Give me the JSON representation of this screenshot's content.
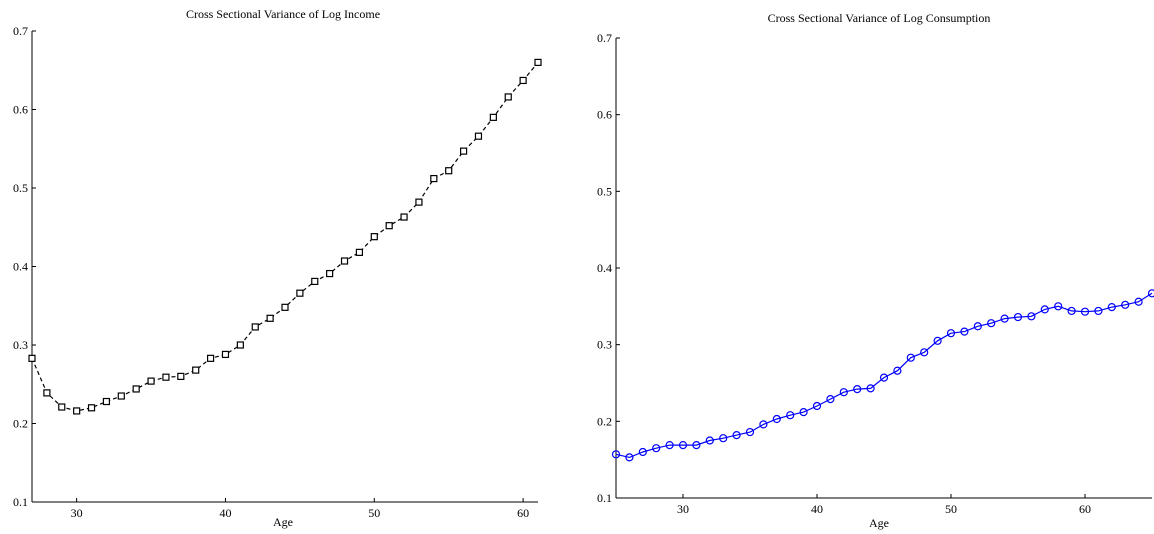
{
  "chart_data": [
    {
      "type": "line",
      "title": "Cross Sectional Variance of Log Income",
      "xlabel": "Age",
      "ylabel": "",
      "xlim": [
        27,
        61
      ],
      "ylim": [
        0.1,
        0.7
      ],
      "xticks": [
        30,
        40,
        50,
        60
      ],
      "yticks": [
        0.1,
        0.2,
        0.3,
        0.4,
        0.5,
        0.6,
        0.7
      ],
      "grid": false,
      "series": [
        {
          "color": "#000000",
          "line_style": "dashed",
          "marker": "square",
          "x": [
            27,
            28,
            29,
            30,
            31,
            32,
            33,
            34,
            35,
            36,
            37,
            38,
            39,
            40,
            41,
            42,
            43,
            44,
            45,
            46,
            47,
            48,
            49,
            50,
            51,
            52,
            53,
            54,
            55,
            56,
            57,
            58,
            59,
            60,
            61
          ],
          "y": [
            0.283,
            0.239,
            0.221,
            0.216,
            0.22,
            0.228,
            0.235,
            0.244,
            0.254,
            0.259,
            0.26,
            0.268,
            0.283,
            0.288,
            0.3,
            0.323,
            0.334,
            0.348,
            0.366,
            0.381,
            0.391,
            0.407,
            0.418,
            0.438,
            0.452,
            0.463,
            0.482,
            0.512,
            0.522,
            0.547,
            0.566,
            0.59,
            0.616,
            0.637,
            0.66
          ]
        }
      ]
    },
    {
      "type": "line",
      "title": "Cross Sectional Variance of Log Consumption",
      "xlabel": "Age",
      "ylabel": "",
      "xlim": [
        25,
        65
      ],
      "ylim": [
        0.1,
        0.7
      ],
      "xticks": [
        30,
        40,
        50,
        60
      ],
      "yticks": [
        0.1,
        0.2,
        0.3,
        0.4,
        0.5,
        0.6,
        0.7
      ],
      "grid": false,
      "series": [
        {
          "color": "#0000ff",
          "line_style": "solid",
          "marker": "circle",
          "x": [
            25,
            26,
            27,
            28,
            29,
            30,
            31,
            32,
            33,
            34,
            35,
            36,
            37,
            38,
            39,
            40,
            41,
            42,
            43,
            44,
            45,
            46,
            47,
            48,
            49,
            50,
            51,
            52,
            53,
            54,
            55,
            56,
            57,
            58,
            59,
            60,
            61,
            62,
            63,
            64,
            65
          ],
          "y": [
            0.157,
            0.153,
            0.16,
            0.165,
            0.169,
            0.169,
            0.169,
            0.175,
            0.178,
            0.182,
            0.186,
            0.196,
            0.203,
            0.208,
            0.212,
            0.22,
            0.229,
            0.238,
            0.242,
            0.243,
            0.257,
            0.266,
            0.283,
            0.29,
            0.305,
            0.315,
            0.317,
            0.324,
            0.328,
            0.334,
            0.336,
            0.337,
            0.346,
            0.35,
            0.344,
            0.343,
            0.344,
            0.349,
            0.352,
            0.356,
            0.367
          ]
        }
      ]
    }
  ]
}
